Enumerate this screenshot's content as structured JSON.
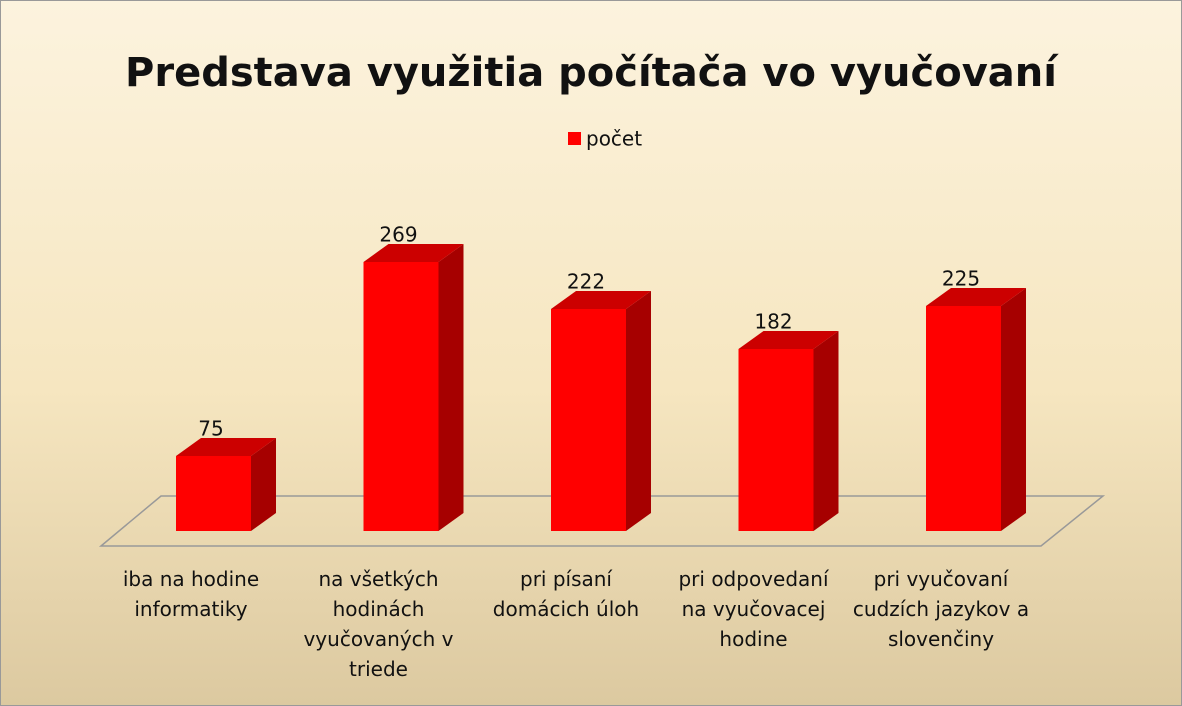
{
  "chart_data": {
    "type": "bar",
    "title": "Predstava využitia počítača vo vyučovaní",
    "categories": [
      "iba na hodine informatiky",
      "na všetkých hodinách vyučovaných v triede",
      "pri písaní domácich úloh",
      "pri odpovedaní na vyučovacej hodine",
      "pri vyučovaní cudzích jazykov a slovenčiny"
    ],
    "series": [
      {
        "name": "počet",
        "color": "#ff0000",
        "values": [
          75,
          269,
          222,
          182,
          225
        ]
      }
    ],
    "legend": "top"
  }
}
